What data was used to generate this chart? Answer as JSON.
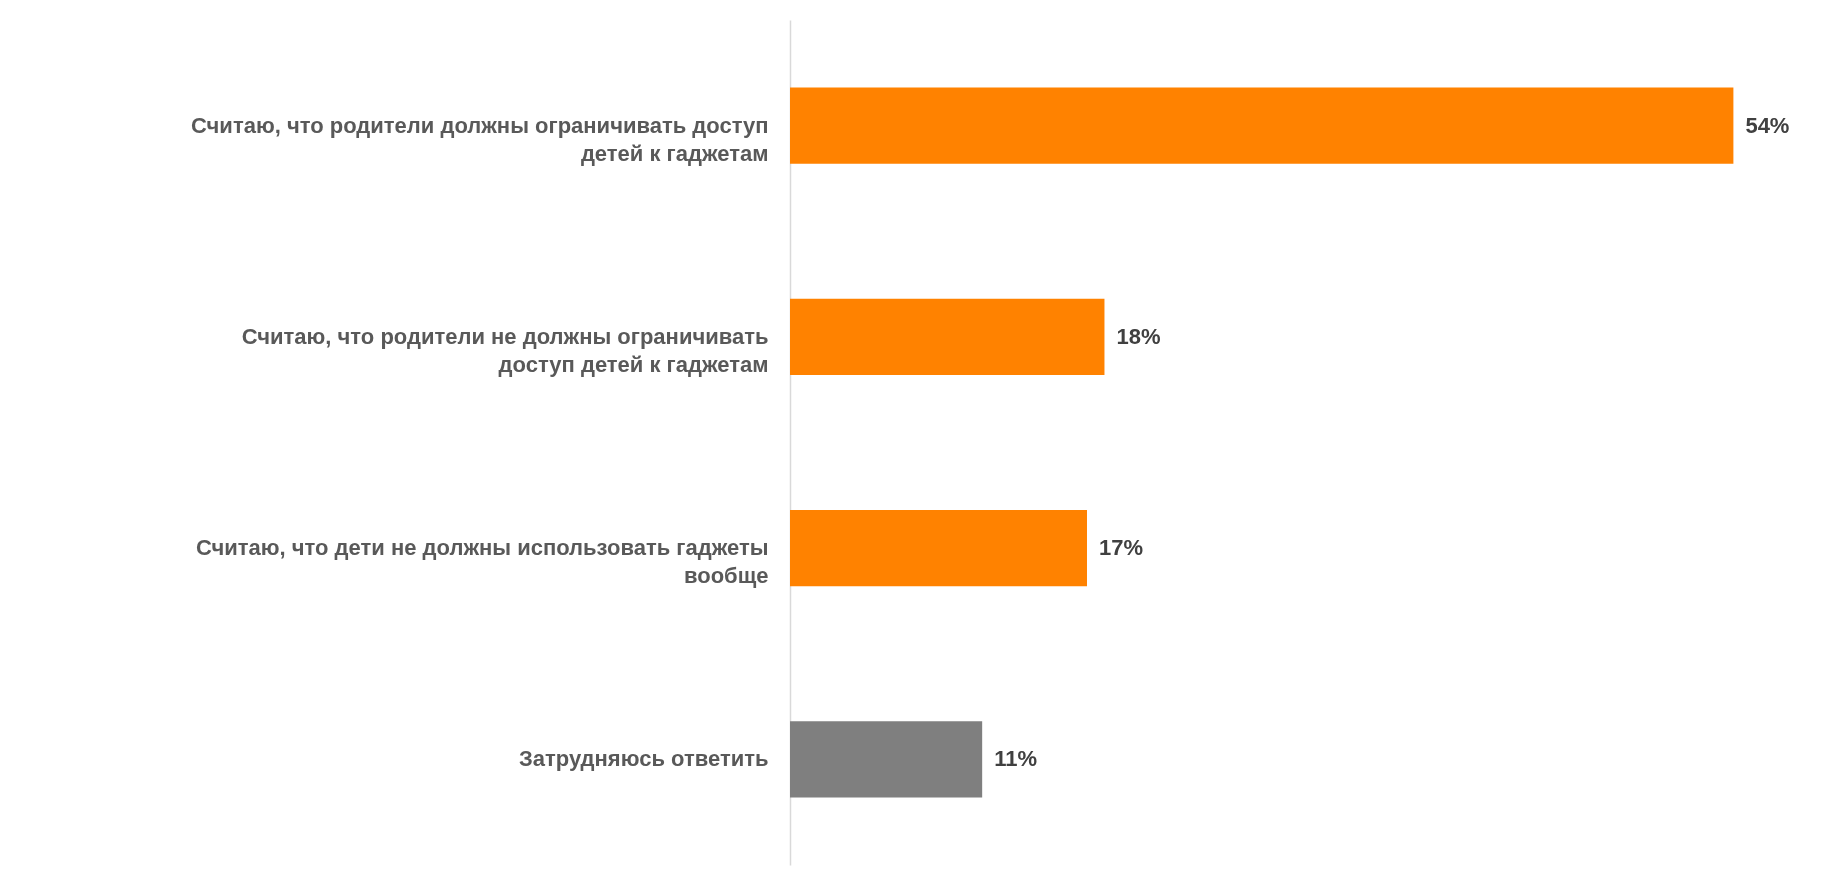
{
  "chart_data": {
    "type": "bar",
    "orientation": "horizontal",
    "data_labels": true,
    "categories": [
      "Считаю, что родители должны ограничивать доступ детей к гаджетам",
      "Считаю, что родители не должны ограничивать доступ детей к гаджетам",
      "Считаю, что дети не должны использовать гаджеты вообще",
      "Затрудняюсь ответить"
    ],
    "values": [
      54,
      18,
      17,
      11
    ],
    "colors": [
      "#ff8200",
      "#ff8200",
      "#ff8200",
      "#7f7f7f"
    ],
    "value_labels": [
      "54%",
      "18%",
      "17%",
      "11%"
    ],
    "grid": false
  }
}
